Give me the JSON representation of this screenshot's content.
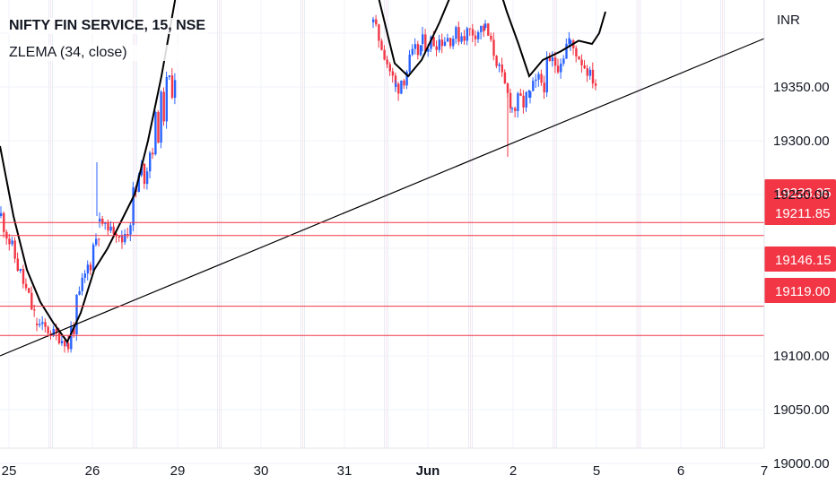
{
  "chart_data": {
    "type": "candlestick",
    "symbol_title": "NIFTY FIN SERVICE, 15, NSE",
    "indicator_label": "ZLEMA (34, close)",
    "currency": "INR",
    "y_ticks": [
      "19350.00",
      "19300.00",
      "19250.00",
      "19100.00",
      "19050.00",
      "19000.00"
    ],
    "y_tick_values": [
      19350,
      19300,
      19250,
      19100,
      19050,
      19000
    ],
    "x_ticks": [
      "25",
      "26",
      "29",
      "30",
      "31",
      "Jun",
      "2",
      "5",
      "6",
      "7"
    ],
    "ylim": [
      18975,
      19415
    ],
    "horizontal_levels": [
      {
        "label": "19223.95",
        "value": 19223.95
      },
      {
        "label": "19211.85",
        "value": 19211.85
      },
      {
        "label": "19146.15",
        "value": 19146.15
      },
      {
        "label": "19119.00",
        "value": 19119.0
      }
    ],
    "trendline": {
      "start": {
        "x": "25",
        "y": 19100
      },
      "end": {
        "x": "7",
        "y": 19395
      }
    },
    "grid": true,
    "colors": {
      "up": "#2962ff",
      "down": "#f23645",
      "level": "#f23645",
      "ma": "#000000",
      "grid": "#f0f3fa",
      "session_sep": "#e8ecf7"
    }
  }
}
